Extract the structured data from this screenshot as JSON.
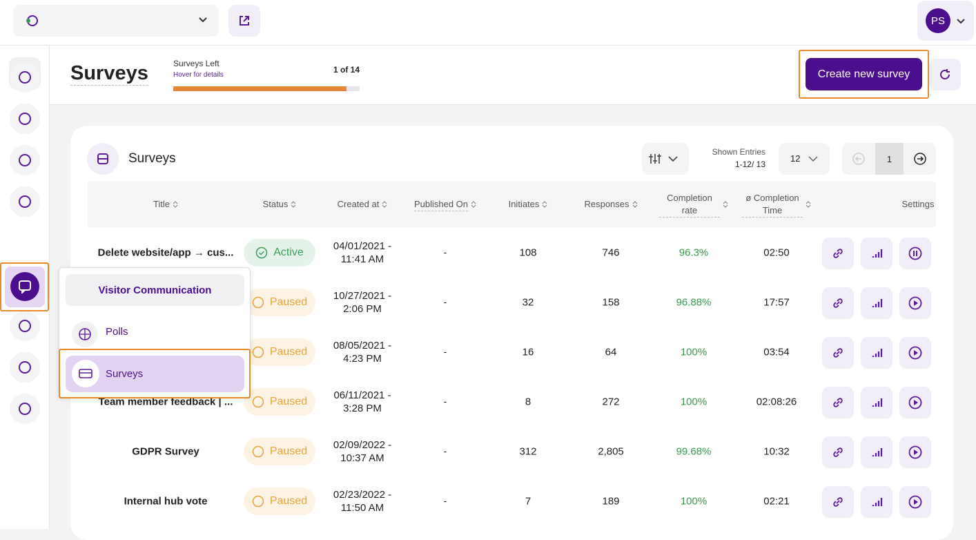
{
  "topbar": {
    "avatar": "PS"
  },
  "header": {
    "title": "Surveys",
    "quota_label": "Surveys Left",
    "quota_hint": "Hover for details",
    "quota_count": "1 of 14",
    "create_button": "Create new survey"
  },
  "panel": {
    "title": "Surveys",
    "shown_entries_label": "Shown Entries",
    "shown_entries_range": "1-12/ 13",
    "page_size": "12",
    "page": "1"
  },
  "table": {
    "columns": [
      "Title",
      "Status",
      "Created at",
      "Published On",
      "Initiates",
      "Responses",
      "Completion rate",
      "ø Completion Time",
      "Settings"
    ],
    "rows": [
      {
        "title": "Delete website/app → cus...",
        "status": "Active",
        "status_color": "#3d9c5a",
        "created": [
          "04/01/2021 -",
          "11:41 AM"
        ],
        "published": "-",
        "initiates": "108",
        "responses": "746",
        "completion_rate": "96.3%",
        "completion_time": "02:50"
      },
      {
        "title": null,
        "status": "Paused",
        "status_color": "#e9a53c",
        "created": [
          "10/27/2021 -",
          "2:06 PM"
        ],
        "published": "-",
        "initiates": "32",
        "responses": "158",
        "completion_rate": "96.88%",
        "completion_time": "17:57"
      },
      {
        "title": null,
        "status": "Paused",
        "status_color": "#e9a53c",
        "created": [
          "08/05/2021 -",
          "4:23 PM"
        ],
        "published": "-",
        "initiates": "16",
        "responses": "64",
        "completion_rate": "100%",
        "completion_time": "03:54"
      },
      {
        "title": "Team member feedback | ...",
        "status": "Paused",
        "status_color": "#e9a53c",
        "created": [
          "06/11/2021 -",
          "3:28 PM"
        ],
        "published": "-",
        "initiates": "8",
        "responses": "272",
        "completion_rate": "100%",
        "completion_time": "02:08:26"
      },
      {
        "title": "GDPR Survey",
        "status": "Paused",
        "status_color": "#e9a53c",
        "created": [
          "02/09/2022 -",
          "10:37 AM"
        ],
        "published": "-",
        "initiates": "312",
        "responses": "2,805",
        "completion_rate": "99.68%",
        "completion_time": "10:32"
      },
      {
        "title": "Internal hub vote",
        "status": "Paused",
        "status_color": "#e9a53c",
        "created": [
          "02/23/2022 -",
          "11:50 AM"
        ],
        "published": "-",
        "initiates": "7",
        "responses": "189",
        "completion_rate": "100%",
        "completion_time": "02:21"
      }
    ]
  },
  "menu": {
    "title": "Visitor Communication",
    "items": [
      "Polls",
      "Surveys"
    ]
  }
}
